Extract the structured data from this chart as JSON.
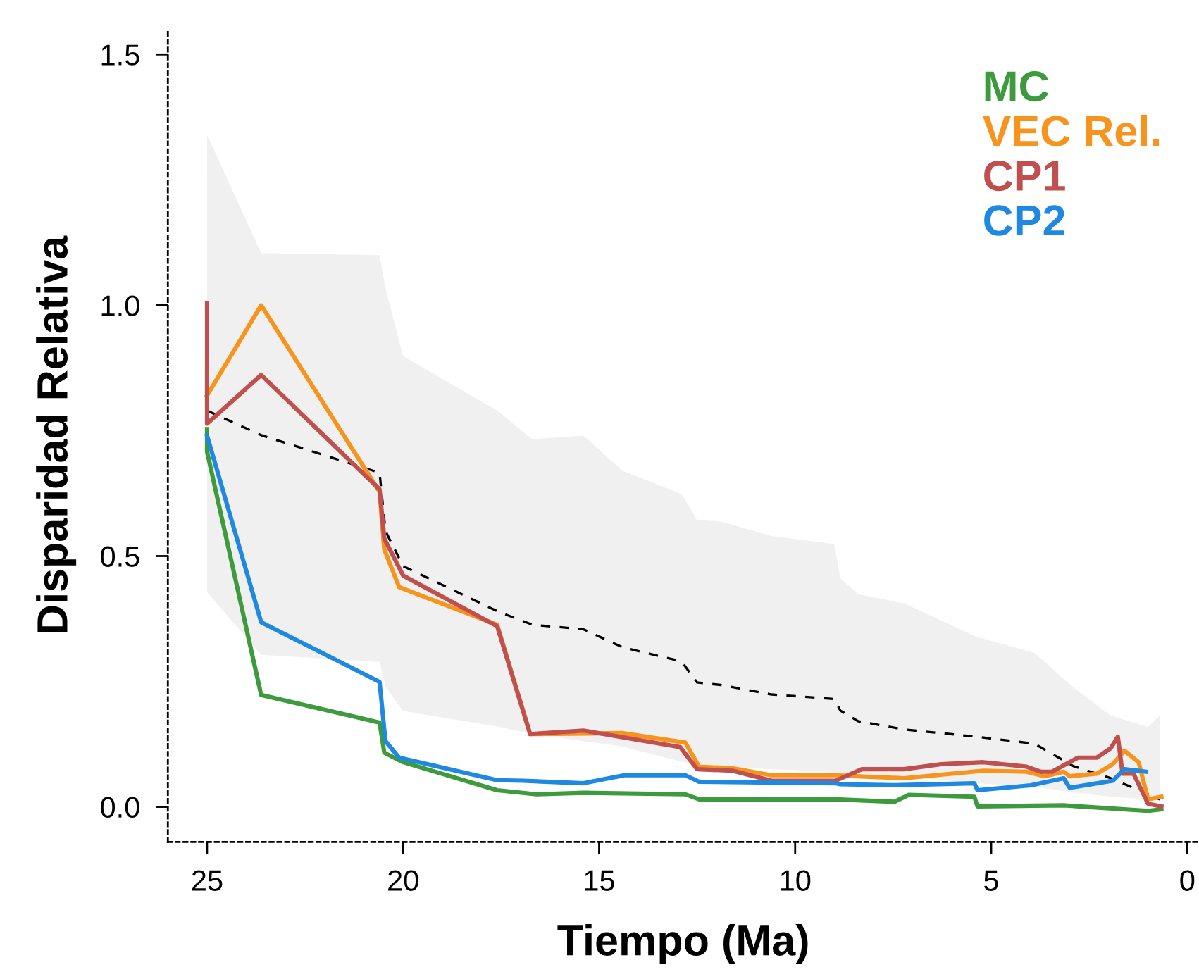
{
  "chart_data": {
    "type": "line",
    "xlabel": "Tiempo (Ma)",
    "ylabel": "Disparidad Relativa",
    "xlim": [
      26,
      -0.3
    ],
    "ylim": [
      -0.07,
      1.55
    ],
    "xticks": [
      25,
      20,
      15,
      10,
      5,
      0
    ],
    "yticks": [
      {
        "value": 0,
        "label": "0.0"
      },
      0.5,
      {
        "value": 1,
        "label": "1.0"
      },
      1.5
    ],
    "grid": false,
    "legend": "top right",
    "marker": "none",
    "line_style": "solid",
    "series": [
      {
        "color": "#000000",
        "line_style": "dashed",
        "x": [
          25,
          23.62,
          20.6,
          20.45,
          20.0,
          17.6,
          16.7,
          15.4,
          14.4,
          12.9,
          12.5,
          11.9,
          10.6,
          9.0,
          8.85,
          8.4,
          7.2,
          5.4,
          3.9,
          2.9,
          1.95,
          1.0,
          0.7
        ],
        "values": [
          0.79,
          0.741,
          0.666,
          0.55,
          0.48,
          0.39,
          0.363,
          0.354,
          0.318,
          0.29,
          0.248,
          0.243,
          0.224,
          0.215,
          0.192,
          0.171,
          0.154,
          0.14,
          0.126,
          0.081,
          0.057,
          0.025,
          0.015
        ],
        "upper": [
          1.34,
          1.104,
          1.1,
          1.034,
          0.899,
          0.79,
          0.733,
          0.74,
          0.67,
          0.624,
          0.572,
          0.569,
          0.54,
          0.524,
          0.456,
          0.424,
          0.405,
          0.34,
          0.307,
          0.238,
          0.182,
          0.159,
          0.182
        ],
        "lower": [
          0.428,
          0.303,
          0.289,
          0.24,
          0.191,
          0.16,
          0.145,
          0.131,
          0.12,
          0.09,
          0.085,
          0.08,
          0.075,
          0.07,
          0.068,
          0.066,
          0.06,
          0.047,
          0.04,
          0.029,
          0.02,
          0.015,
          0.015
        ]
      },
      {
        "name": "MC",
        "color": "#3d9a3d",
        "x": [
          25,
          25,
          23.62,
          20.6,
          20.48,
          20.0,
          17.6,
          16.6,
          15.4,
          12.8,
          12.45,
          8.97,
          7.47,
          7.1,
          5.43,
          5.35,
          3.15,
          1.0,
          0.66
        ],
        "values": [
          0.753,
          0.708,
          0.223,
          0.168,
          0.108,
          0.089,
          0.033,
          0.025,
          0.028,
          0.025,
          0.015,
          0.015,
          0.01,
          0.024,
          0.02,
          0.001,
          0.003,
          -0.008,
          -0.005
        ]
      },
      {
        "name": "VEC Rel.",
        "color": "#f7941d",
        "x": [
          25,
          23.62,
          20.6,
          20.48,
          20.1,
          17.6,
          16.76,
          14.42,
          12.8,
          12.45,
          11.6,
          10.6,
          8.97,
          8.43,
          7.23,
          5.2,
          4.1,
          3.63,
          3.15,
          3.0,
          2.31,
          1.9,
          1.6,
          1.24,
          1.0,
          0.66
        ],
        "values": [
          0.82,
          1.0,
          0.628,
          0.513,
          0.438,
          0.363,
          0.145,
          0.147,
          0.128,
          0.08,
          0.077,
          0.063,
          0.063,
          0.061,
          0.057,
          0.072,
          0.07,
          0.061,
          0.07,
          0.061,
          0.066,
          0.085,
          0.112,
          0.089,
          0.015,
          0.02
        ]
      },
      {
        "name": "CP1",
        "color": "#c0504d",
        "x": [
          25,
          25,
          23.62,
          20.6,
          20.48,
          20.0,
          17.6,
          16.76,
          15.4,
          12.93,
          12.5,
          11.6,
          10.6,
          8.97,
          8.3,
          7.23,
          6.27,
          5.2,
          4.1,
          3.74,
          3.45,
          2.79,
          2.31,
          1.95,
          1.77,
          1.65,
          1.37,
          1.0,
          0.66
        ],
        "values": [
          1.004,
          0.764,
          0.861,
          0.633,
          0.535,
          0.461,
          0.36,
          0.145,
          0.152,
          0.119,
          0.075,
          0.072,
          0.052,
          0.052,
          0.075,
          0.075,
          0.085,
          0.089,
          0.08,
          0.07,
          0.07,
          0.098,
          0.098,
          0.117,
          0.14,
          0.066,
          0.066,
          0.006,
          0.001
        ]
      },
      {
        "name": "CP2",
        "color": "#1f88e0",
        "x": [
          25,
          23.62,
          20.6,
          20.45,
          20.1,
          17.6,
          16.94,
          15.4,
          14.36,
          12.8,
          12.45,
          8.97,
          8.85,
          7.47,
          5.43,
          5.35,
          3.99,
          3.15,
          3.0,
          1.9,
          1.6,
          1.06
        ],
        "values": [
          0.74,
          0.368,
          0.249,
          0.131,
          0.098,
          0.053,
          0.052,
          0.047,
          0.063,
          0.063,
          0.05,
          0.047,
          0.045,
          0.043,
          0.047,
          0.033,
          0.043,
          0.057,
          0.038,
          0.052,
          0.075,
          0.07
        ]
      }
    ]
  }
}
